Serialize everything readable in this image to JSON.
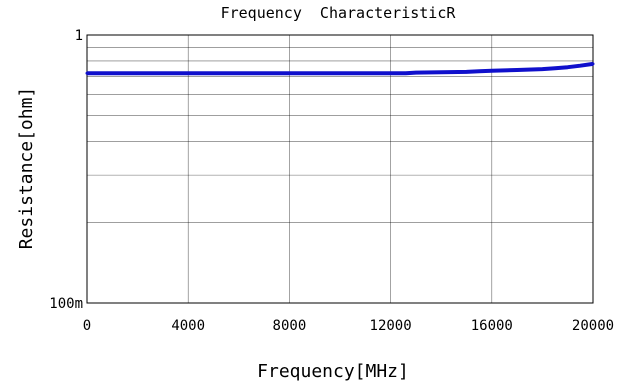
{
  "chart_data": {
    "type": "line",
    "title": "Frequency  CharacteristicR",
    "xlabel": "Frequency[MHz]",
    "ylabel": "Resistance[ohm]",
    "xlim": [
      0,
      20000
    ],
    "ylim": [
      0.1,
      1
    ],
    "yscale": "log",
    "grid": true,
    "x_ticks": [
      0,
      4000,
      8000,
      12000,
      16000,
      20000
    ],
    "x_tick_labels": [
      "0",
      "4000",
      "8000",
      "12000",
      "16000",
      "20000"
    ],
    "y_tick_labels": [
      {
        "value": 1,
        "label": "1"
      },
      {
        "value": 0.1,
        "label": "100m"
      }
    ],
    "series": [
      {
        "color": "#1010cc",
        "x": [
          0,
          2000,
          4000,
          6000,
          8000,
          10000,
          12000,
          12600,
          13000,
          14000,
          15000,
          15500,
          16000,
          17000,
          18000,
          18500,
          19000,
          19500,
          20000
        ],
        "y": [
          0.72,
          0.72,
          0.72,
          0.72,
          0.72,
          0.72,
          0.72,
          0.72,
          0.724,
          0.726,
          0.728,
          0.732,
          0.735,
          0.74,
          0.746,
          0.752,
          0.758,
          0.768,
          0.78
        ]
      }
    ]
  }
}
